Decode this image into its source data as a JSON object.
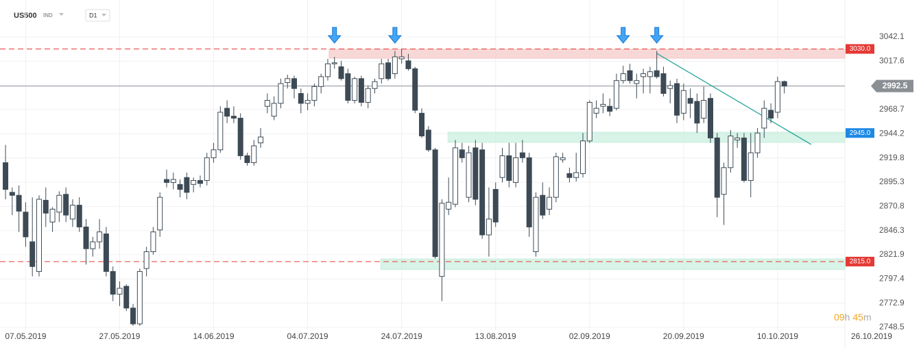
{
  "header": {
    "symbol": "US500",
    "market": "IND",
    "timeframe": "D1"
  },
  "chart_data": {
    "type": "candlestick",
    "open": [
      2915,
      2885,
      2882,
      2865,
      2835,
      2805,
      2877,
      2855,
      2865,
      2883,
      2858,
      2872,
      2850,
      2828,
      2835,
      2843,
      2805,
      2782,
      2790,
      2768,
      2752,
      2808,
      2825,
      2847,
      2898,
      2895,
      2893,
      2900,
      2893,
      2897,
      2897,
      2920,
      2928,
      2970,
      2962,
      2960,
      2922,
      2915,
      2935,
      2972,
      2962,
      2975,
      2996,
      3000,
      2985,
      2975,
      2978,
      2992,
      3002,
      3015,
      3012,
      3005,
      2978,
      3000,
      2976,
      2990,
      3000,
      3016,
      3005,
      3020,
      3018,
      3010,
      2965,
      2948,
      2928,
      2800,
      2868,
      2873,
      2928,
      2880,
      2930,
      2928,
      2842,
      2888,
      2900,
      2922,
      2895,
      2925,
      2920,
      2825,
      2882,
      2868,
      2880,
      2918,
      2904,
      2900,
      2904,
      2937,
      2965,
      2972,
      2972,
      2970,
      2998,
      3008,
      2995,
      3002,
      3002,
      3008,
      3005,
      2990,
      2995,
      2965,
      2980,
      2977,
      2960,
      2980,
      2940,
      2883,
      2910,
      2938,
      2940,
      2897,
      2925,
      2950,
      2968,
      2966,
      2997
    ],
    "high": [
      2933,
      2890,
      2892,
      2875,
      2880,
      2882,
      2890,
      2870,
      2886,
      2890,
      2878,
      2880,
      2858,
      2840,
      2858,
      2850,
      2810,
      2795,
      2792,
      2772,
      2808,
      2830,
      2850,
      2885,
      2908,
      2905,
      2898,
      2905,
      2900,
      2902,
      2925,
      2935,
      2972,
      2978,
      2972,
      2965,
      2925,
      2938,
      2950,
      2985,
      2982,
      3000,
      3004,
      3003,
      2990,
      2985,
      2995,
      3005,
      3020,
      3022,
      3018,
      3010,
      3002,
      3003,
      2993,
      3000,
      3020,
      3020,
      3028,
      3030,
      3025,
      3012,
      2970,
      2952,
      2930,
      2878,
      2900,
      2938,
      2935,
      2932,
      2938,
      2935,
      2890,
      2895,
      2930,
      2935,
      2935,
      2938,
      2925,
      2885,
      2895,
      2890,
      2925,
      2925,
      2910,
      2925,
      2945,
      2978,
      2978,
      2985,
      2980,
      3005,
      3013,
      3015,
      3005,
      3010,
      3012,
      3028,
      3012,
      2998,
      3000,
      2995,
      2990,
      2985,
      2992,
      2985,
      2945,
      2915,
      2948,
      2945,
      2945,
      2945,
      2950,
      2978,
      2975,
      3002,
      2998
    ],
    "low": [
      2878,
      2862,
      2845,
      2830,
      2800,
      2800,
      2850,
      2845,
      2855,
      2855,
      2850,
      2845,
      2812,
      2820,
      2828,
      2800,
      2775,
      2770,
      2765,
      2750,
      2750,
      2800,
      2822,
      2840,
      2890,
      2888,
      2880,
      2878,
      2885,
      2890,
      2892,
      2915,
      2925,
      2955,
      2955,
      2918,
      2912,
      2912,
      2930,
      2965,
      2958,
      2970,
      2990,
      2980,
      2965,
      2968,
      2972,
      2985,
      2998,
      3010,
      2998,
      2975,
      2975,
      2972,
      2970,
      2985,
      2995,
      2998,
      3000,
      3015,
      3008,
      2965,
      2940,
      2926,
      2818,
      2775,
      2862,
      2870,
      2915,
      2875,
      2872,
      2838,
      2820,
      2850,
      2895,
      2890,
      2890,
      2915,
      2840,
      2820,
      2858,
      2862,
      2875,
      2915,
      2895,
      2896,
      2900,
      2935,
      2960,
      2965,
      2962,
      2968,
      2995,
      2995,
      2980,
      2985,
      2985,
      3000,
      2982,
      2975,
      2955,
      2958,
      2960,
      2945,
      2955,
      2935,
      2860,
      2852,
      2905,
      2930,
      2895,
      2880,
      2920,
      2940,
      2955,
      2960,
      2985
    ],
    "close": [
      2888,
      2882,
      2866,
      2840,
      2810,
      2878,
      2864,
      2868,
      2882,
      2862,
      2872,
      2850,
      2828,
      2835,
      2845,
      2805,
      2782,
      2788,
      2768,
      2752,
      2805,
      2825,
      2845,
      2880,
      2895,
      2898,
      2888,
      2885,
      2897,
      2894,
      2920,
      2928,
      2966,
      2962,
      2960,
      2922,
      2915,
      2932,
      2941,
      2978,
      2975,
      2995,
      3000,
      2990,
      2975,
      2978,
      2992,
      3002,
      3015,
      3016,
      3000,
      2978,
      3000,
      2976,
      2990,
      2997,
      3015,
      3000,
      3022,
      3022,
      3010,
      2968,
      2942,
      2928,
      2820,
      2874,
      2875,
      2930,
      2920,
      2925,
      2878,
      2842,
      2858,
      2855,
      2922,
      2897,
      2920,
      2920,
      2850,
      2880,
      2862,
      2880,
      2921,
      2920,
      2900,
      2905,
      2937,
      2976,
      2970,
      2974,
      2967,
      2998,
      3005,
      2998,
      2998,
      3005,
      3007,
      3002,
      2985,
      2993,
      2963,
      2988,
      2975,
      2955,
      2978,
      2940,
      2880,
      2910,
      2942,
      2940,
      2897,
      2925,
      2945,
      2970,
      2960,
      2997,
      2992.5
    ],
    "up_color": "#ffffff",
    "down_color": "#3d4a55",
    "xlim": [
      -0.82,
      125.02
    ],
    "xticks": [
      {
        "value": 3,
        "label": "07.05.2019"
      },
      {
        "value": 17,
        "label": "27.05.2019"
      },
      {
        "value": 31,
        "label": "14.06.2019"
      },
      {
        "value": 45,
        "label": "04.07.2019"
      },
      {
        "value": 59,
        "label": "24.07.2019"
      },
      {
        "value": 73,
        "label": "13.08.2019"
      },
      {
        "value": 87,
        "label": "02.09.2019"
      },
      {
        "value": 101,
        "label": "20.09.2019"
      },
      {
        "value": 115,
        "label": "10.10.2019"
      },
      {
        "value": 129,
        "label": "26.10.2019"
      }
    ],
    "ylim": [
      2748.5,
      3042.1
    ],
    "yticks": [
      3042.1,
      3017.6,
      2968.7,
      2944.2,
      2919.8,
      2895.3,
      2870.8,
      2846.3,
      2821.9,
      2797.4,
      2772.9,
      2748.5
    ],
    "grid": true,
    "levels": [
      {
        "value": 3030,
        "label": "3030.0",
        "color": "#e53935",
        "dashed": true
      },
      {
        "value": 2815,
        "label": "2815.0",
        "color": "#e53935",
        "dashed": true
      }
    ],
    "zone_labels": [
      {
        "value": 2945,
        "label": "2945.0",
        "color": "#1e88e5"
      }
    ],
    "last": {
      "value": 2992.5,
      "label": "2992.5",
      "color": "#8a8f94"
    },
    "zones": [
      {
        "low": 3020.6,
        "high": 3029.6,
        "start": 48.2,
        "color": "#f5c6c6"
      },
      {
        "low": 2935.5,
        "high": 2945.8,
        "start": 65.9,
        "color": "#c8eedd"
      },
      {
        "low": 2807,
        "high": 2817.7,
        "start": 55.9,
        "color": "#c8eedd"
      }
    ],
    "trendline": {
      "x": [
        97,
        120
      ],
      "values": [
        3025.5,
        2933.4
      ],
      "color": "#26a69a"
    },
    "arrows": {
      "x": [
        49,
        58,
        92,
        97
      ],
      "color": "#42a5f5"
    },
    "countdown": [
      "09",
      "h",
      "45",
      "m"
    ]
  }
}
